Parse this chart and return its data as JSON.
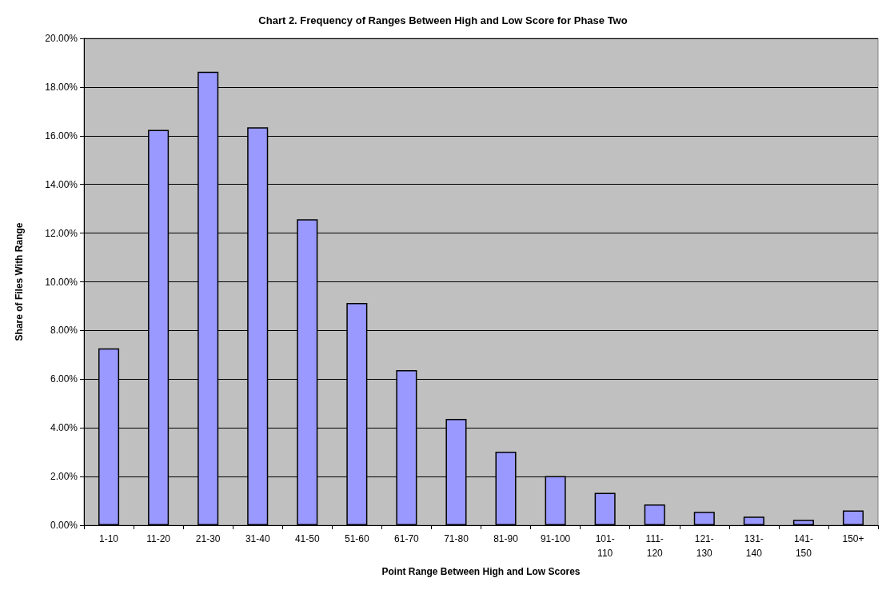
{
  "chart_data": {
    "type": "bar",
    "title": "Chart 2. Frequency of Ranges Between High and Low Score for Phase Two",
    "xlabel": "Point Range Between High and Low Scores",
    "ylabel": "Share of Files With Range",
    "categories": [
      "1-10",
      "11-20",
      "21-30",
      "31-40",
      "41-50",
      "51-60",
      "61-70",
      "71-80",
      "81-90",
      "91-100",
      "101-110",
      "111-120",
      "121-130",
      "131-140",
      "141-150",
      "150+"
    ],
    "values": [
      7.27,
      16.24,
      18.63,
      16.35,
      12.57,
      9.13,
      6.37,
      4.37,
      3.02,
      2.02,
      1.33,
      0.85,
      0.55,
      0.35,
      0.22,
      0.61
    ],
    "color": "#9999ff",
    "ylim": [
      0,
      20
    ],
    "yticks": [
      {
        "value": 0,
        "label": "0.00%"
      },
      {
        "value": 2,
        "label": "2.00%"
      },
      {
        "value": 4,
        "label": "4.00%"
      },
      {
        "value": 6,
        "label": "6.00%"
      },
      {
        "value": 8,
        "label": "8.00%"
      },
      {
        "value": 10,
        "label": "10.00%"
      },
      {
        "value": 12,
        "label": "12.00%"
      },
      {
        "value": 14,
        "label": "14.00%"
      },
      {
        "value": 16,
        "label": "16.00%"
      },
      {
        "value": 18,
        "label": "18.00%"
      },
      {
        "value": 20,
        "label": "20.00%"
      }
    ],
    "grid": "y"
  }
}
